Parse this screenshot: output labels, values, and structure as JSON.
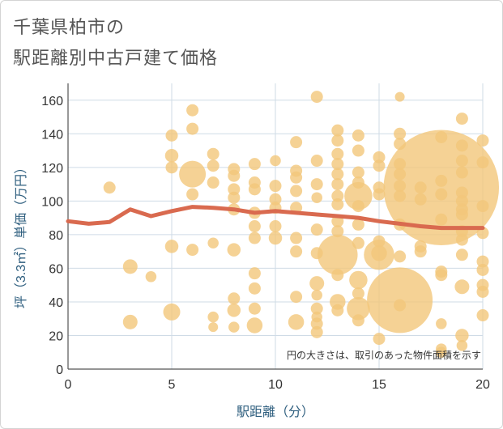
{
  "chart_data": {
    "type": "scatter",
    "title_line1": "千葉県柏市の",
    "title_line2": "駅距離別中古戸建て価格",
    "xlabel": "駅距離（分）",
    "ylabel": "坪（3.3㎡）単価（万円）",
    "xlim": [
      0,
      20
    ],
    "ylim": [
      0,
      170
    ],
    "xticks": [
      0,
      5,
      10,
      15,
      20
    ],
    "yticks": [
      0,
      20,
      40,
      60,
      80,
      100,
      120,
      140,
      160
    ],
    "note": "円の大きさは、取引のあった物件面積を示す",
    "bubble_color": "#f3c77a",
    "line_color": "#d96a4f",
    "trend_line": {
      "x": [
        0,
        1,
        2,
        3,
        4,
        5,
        6,
        7,
        8,
        9,
        10,
        11,
        12,
        13,
        14,
        15,
        16,
        17,
        18,
        19,
        20
      ],
      "y": [
        88,
        86.5,
        87.5,
        95,
        91,
        94,
        96.5,
        96,
        95,
        93,
        94,
        93,
        92,
        91,
        90,
        88,
        86.5,
        85,
        84,
        84,
        84
      ]
    },
    "bubbles": [
      {
        "x": 2,
        "y": 108,
        "r": 1
      },
      {
        "x": 3,
        "y": 61,
        "r": 1.2
      },
      {
        "x": 3,
        "y": 28,
        "r": 1.2
      },
      {
        "x": 4,
        "y": 55,
        "r": 0.9
      },
      {
        "x": 5,
        "y": 139,
        "r": 1
      },
      {
        "x": 5,
        "y": 127,
        "r": 1.1
      },
      {
        "x": 5,
        "y": 120,
        "r": 1
      },
      {
        "x": 5,
        "y": 73,
        "r": 1.1
      },
      {
        "x": 5,
        "y": 34,
        "r": 1.4
      },
      {
        "x": 6,
        "y": 154,
        "r": 1
      },
      {
        "x": 6,
        "y": 143,
        "r": 1
      },
      {
        "x": 6,
        "y": 116,
        "r": 2.2
      },
      {
        "x": 6,
        "y": 104,
        "r": 1
      },
      {
        "x": 6,
        "y": 71,
        "r": 1
      },
      {
        "x": 7,
        "y": 128,
        "r": 1
      },
      {
        "x": 7,
        "y": 121,
        "r": 1
      },
      {
        "x": 7,
        "y": 111,
        "r": 1
      },
      {
        "x": 7,
        "y": 75,
        "r": 0.9
      },
      {
        "x": 7,
        "y": 31,
        "r": 0.9
      },
      {
        "x": 7,
        "y": 25,
        "r": 0.8
      },
      {
        "x": 8,
        "y": 119,
        "r": 1
      },
      {
        "x": 8,
        "y": 115,
        "r": 1
      },
      {
        "x": 8,
        "y": 107,
        "r": 1
      },
      {
        "x": 8,
        "y": 102,
        "r": 1
      },
      {
        "x": 8,
        "y": 95,
        "r": 1
      },
      {
        "x": 8,
        "y": 71,
        "r": 1.1
      },
      {
        "x": 8,
        "y": 42,
        "r": 1
      },
      {
        "x": 8,
        "y": 35,
        "r": 1.1
      },
      {
        "x": 8,
        "y": 25,
        "r": 0.9
      },
      {
        "x": 9,
        "y": 122,
        "r": 1
      },
      {
        "x": 9,
        "y": 111,
        "r": 1
      },
      {
        "x": 9,
        "y": 107,
        "r": 1
      },
      {
        "x": 9,
        "y": 93,
        "r": 1
      },
      {
        "x": 9,
        "y": 85,
        "r": 1
      },
      {
        "x": 9,
        "y": 78,
        "r": 1
      },
      {
        "x": 9,
        "y": 57,
        "r": 1
      },
      {
        "x": 9,
        "y": 48,
        "r": 1
      },
      {
        "x": 9,
        "y": 36,
        "r": 1
      },
      {
        "x": 9,
        "y": 26,
        "r": 1.3
      },
      {
        "x": 10,
        "y": 124,
        "r": 0.9
      },
      {
        "x": 10,
        "y": 109,
        "r": 1
      },
      {
        "x": 10,
        "y": 101,
        "r": 1
      },
      {
        "x": 10,
        "y": 96,
        "r": 1
      },
      {
        "x": 10,
        "y": 85,
        "r": 1
      },
      {
        "x": 10,
        "y": 78,
        "r": 1.1
      },
      {
        "x": 11,
        "y": 135,
        "r": 1
      },
      {
        "x": 11,
        "y": 118,
        "r": 1
      },
      {
        "x": 11,
        "y": 114,
        "r": 1
      },
      {
        "x": 11,
        "y": 106,
        "r": 1
      },
      {
        "x": 11,
        "y": 96,
        "r": 1
      },
      {
        "x": 11,
        "y": 78,
        "r": 1
      },
      {
        "x": 11,
        "y": 70,
        "r": 1
      },
      {
        "x": 11,
        "y": 43,
        "r": 1
      },
      {
        "x": 11,
        "y": 28,
        "r": 1.3
      },
      {
        "x": 12,
        "y": 162,
        "r": 1
      },
      {
        "x": 12,
        "y": 124,
        "r": 1
      },
      {
        "x": 12,
        "y": 110,
        "r": 1
      },
      {
        "x": 12,
        "y": 102,
        "r": 0.9
      },
      {
        "x": 12,
        "y": 83,
        "r": 1
      },
      {
        "x": 12,
        "y": 69,
        "r": 1
      },
      {
        "x": 12,
        "y": 51,
        "r": 1.2
      },
      {
        "x": 12,
        "y": 44,
        "r": 0.9
      },
      {
        "x": 12,
        "y": 36,
        "r": 1
      },
      {
        "x": 12,
        "y": 31,
        "r": 0.9
      },
      {
        "x": 12,
        "y": 27,
        "r": 1
      },
      {
        "x": 12,
        "y": 22,
        "r": 1
      },
      {
        "x": 13,
        "y": 142,
        "r": 1
      },
      {
        "x": 13,
        "y": 136,
        "r": 1
      },
      {
        "x": 13,
        "y": 128,
        "r": 1
      },
      {
        "x": 13,
        "y": 122,
        "r": 1
      },
      {
        "x": 13,
        "y": 116,
        "r": 1
      },
      {
        "x": 13,
        "y": 110,
        "r": 1
      },
      {
        "x": 13,
        "y": 103,
        "r": 1
      },
      {
        "x": 13,
        "y": 98,
        "r": 1
      },
      {
        "x": 13,
        "y": 88,
        "r": 1
      },
      {
        "x": 13,
        "y": 82,
        "r": 1
      },
      {
        "x": 13,
        "y": 68,
        "r": 3.3
      },
      {
        "x": 13,
        "y": 56,
        "r": 1
      },
      {
        "x": 13,
        "y": 40,
        "r": 1.3
      },
      {
        "x": 13,
        "y": 35,
        "r": 1
      },
      {
        "x": 14,
        "y": 139,
        "r": 1
      },
      {
        "x": 14,
        "y": 130,
        "r": 1
      },
      {
        "x": 14,
        "y": 117,
        "r": 1
      },
      {
        "x": 14,
        "y": 111,
        "r": 1
      },
      {
        "x": 14,
        "y": 103,
        "r": 2.3
      },
      {
        "x": 14,
        "y": 97,
        "r": 1
      },
      {
        "x": 14,
        "y": 86,
        "r": 1
      },
      {
        "x": 14,
        "y": 75,
        "r": 1
      },
      {
        "x": 14,
        "y": 53,
        "r": 1.5
      },
      {
        "x": 14,
        "y": 45,
        "r": 1
      },
      {
        "x": 14,
        "y": 36,
        "r": 1.9
      },
      {
        "x": 14,
        "y": 29,
        "r": 1
      },
      {
        "x": 15,
        "y": 126,
        "r": 1
      },
      {
        "x": 15,
        "y": 121,
        "r": 1
      },
      {
        "x": 15,
        "y": 108,
        "r": 1
      },
      {
        "x": 15,
        "y": 104,
        "r": 1
      },
      {
        "x": 15,
        "y": 76,
        "r": 1
      },
      {
        "x": 15,
        "y": 69,
        "r": 1.3
      },
      {
        "x": 15,
        "y": 68,
        "r": 2.5
      },
      {
        "x": 15,
        "y": 18,
        "r": 1
      },
      {
        "x": 16,
        "y": 162,
        "r": 0.8
      },
      {
        "x": 16,
        "y": 140,
        "r": 1
      },
      {
        "x": 16,
        "y": 134,
        "r": 1
      },
      {
        "x": 16,
        "y": 122,
        "r": 1
      },
      {
        "x": 16,
        "y": 116,
        "r": 1
      },
      {
        "x": 16,
        "y": 109,
        "r": 1
      },
      {
        "x": 16,
        "y": 103,
        "r": 1
      },
      {
        "x": 16,
        "y": 86,
        "r": 1
      },
      {
        "x": 16,
        "y": 67,
        "r": 1
      },
      {
        "x": 16,
        "y": 41,
        "r": 5.4
      },
      {
        "x": 16,
        "y": 38,
        "r": 1
      },
      {
        "x": 17,
        "y": 108,
        "r": 1
      },
      {
        "x": 17,
        "y": 101,
        "r": 1
      },
      {
        "x": 17,
        "y": 73,
        "r": 1
      },
      {
        "x": 17,
        "y": 70,
        "r": 1
      },
      {
        "x": 18,
        "y": 138,
        "r": 1
      },
      {
        "x": 18,
        "y": 112,
        "r": 1
      },
      {
        "x": 18,
        "y": 108,
        "r": 9.5
      },
      {
        "x": 18,
        "y": 104,
        "r": 1
      },
      {
        "x": 18,
        "y": 89,
        "r": 1
      },
      {
        "x": 18,
        "y": 58,
        "r": 1
      },
      {
        "x": 18,
        "y": 56,
        "r": 1
      },
      {
        "x": 18,
        "y": 27,
        "r": 0.9
      },
      {
        "x": 18,
        "y": 12,
        "r": 0.9
      },
      {
        "x": 18,
        "y": 10,
        "r": 0.9
      },
      {
        "x": 19,
        "y": 149,
        "r": 1
      },
      {
        "x": 19,
        "y": 133,
        "r": 1
      },
      {
        "x": 19,
        "y": 124,
        "r": 1
      },
      {
        "x": 19,
        "y": 117,
        "r": 1
      },
      {
        "x": 19,
        "y": 105,
        "r": 1
      },
      {
        "x": 19,
        "y": 100,
        "r": 1
      },
      {
        "x": 19,
        "y": 95,
        "r": 1
      },
      {
        "x": 19,
        "y": 92,
        "r": 1
      },
      {
        "x": 19,
        "y": 82,
        "r": 1
      },
      {
        "x": 19,
        "y": 77,
        "r": 1
      },
      {
        "x": 19,
        "y": 68,
        "r": 1
      },
      {
        "x": 19,
        "y": 49,
        "r": 1.2
      },
      {
        "x": 19,
        "y": 20,
        "r": 1.1
      },
      {
        "x": 19,
        "y": 14,
        "r": 0.9
      },
      {
        "x": 20,
        "y": 136,
        "r": 1
      },
      {
        "x": 20,
        "y": 123,
        "r": 1
      },
      {
        "x": 20,
        "y": 97,
        "r": 1
      },
      {
        "x": 20,
        "y": 81,
        "r": 1
      },
      {
        "x": 20,
        "y": 64,
        "r": 1
      },
      {
        "x": 20,
        "y": 59,
        "r": 1
      },
      {
        "x": 20,
        "y": 50,
        "r": 1
      },
      {
        "x": 20,
        "y": 46,
        "r": 1
      },
      {
        "x": 20,
        "y": 32,
        "r": 1
      }
    ]
  }
}
